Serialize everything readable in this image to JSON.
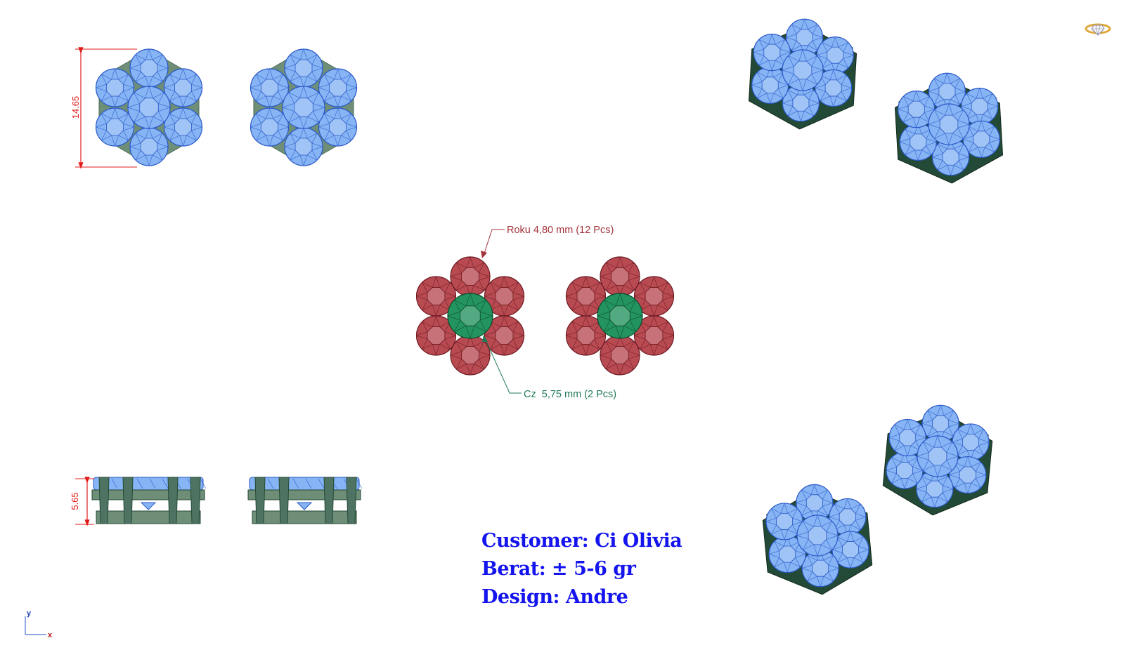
{
  "colors": {
    "stone_blue": "#86b4f4",
    "stone_blue_line": "#2a58c8",
    "metal_green": "#6f8e78",
    "metal_dark": "#234a36",
    "ruby": "#b84a52",
    "ruby_line": "#6e1a22",
    "emerald": "#23935f",
    "emerald_line": "#0b4a2c",
    "dimension_red": "#e21b1b",
    "label_ruby": "#a4343c",
    "label_green": "#207a55",
    "info_blue": "#1414ee"
  },
  "dimensions": {
    "top_width": "14.65",
    "side_height": "5.65"
  },
  "callouts": {
    "ruby": "Roku 4,80 mm (12 Pcs)",
    "cz": "Cz  5,75 mm (2 Pcs)"
  },
  "info": {
    "customer": "Customer: Ci Olivia",
    "weight": "Berat: ± 5-6 gr",
    "designer": "Design: Andre"
  },
  "axis": {
    "x": "x",
    "y": "y"
  },
  "icons": [
    "ring-logo-icon",
    "axis-triad-icon"
  ]
}
